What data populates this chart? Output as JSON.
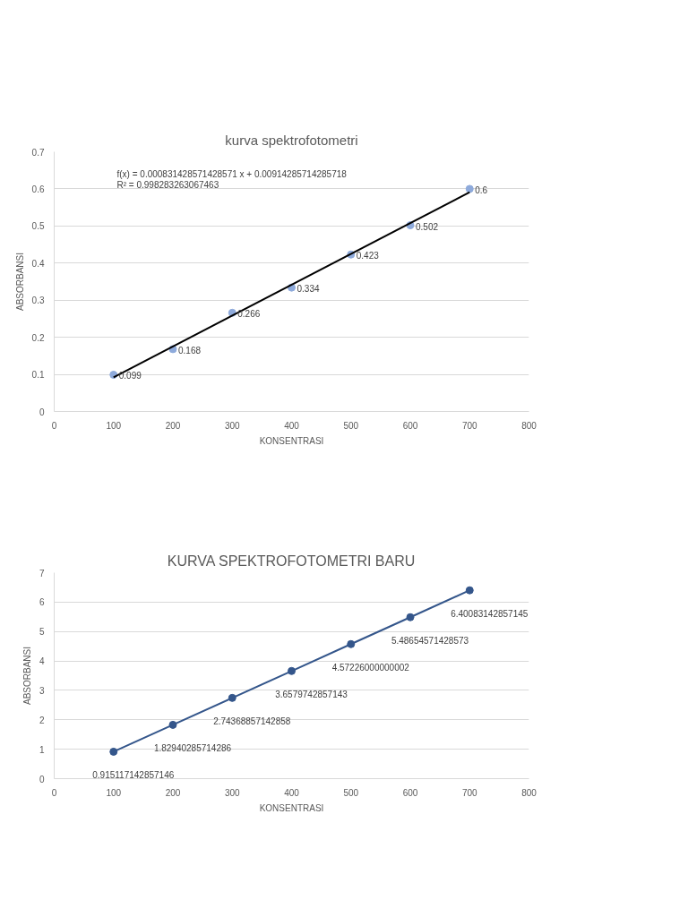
{
  "chart_data": [
    {
      "type": "scatter",
      "title": "kurva spektrofotometri",
      "xlabel": "KONSENTRASI",
      "ylabel": "ABSORBANSI",
      "x": [
        100,
        200,
        300,
        400,
        500,
        600,
        700
      ],
      "series": [
        {
          "color": "#8eaadb",
          "marker": "circle",
          "values": [
            0.099,
            0.168,
            0.266,
            0.334,
            0.423,
            0.502,
            0.6
          ],
          "value_labels": [
            "0.099",
            "0.168",
            "0.266",
            "0.334",
            "0.423",
            "0.502",
            "0.6"
          ]
        },
        {
          "type": "line",
          "color": "#000000",
          "x": [
            100,
            700
          ],
          "values": [
            0.092,
            0.591
          ]
        }
      ],
      "annotations": [
        "f(x) = 0.000831428571428571 x + 0.00914285714285718",
        "R² = 0.998283263067463"
      ],
      "xlim": [
        0,
        800
      ],
      "xticks": [
        0,
        100,
        200,
        300,
        400,
        500,
        600,
        700,
        800
      ],
      "ylim": [
        0,
        0.7
      ],
      "yticks": [
        0,
        0.1,
        0.2,
        0.3,
        0.4,
        0.5,
        0.6,
        0.7
      ],
      "grid": "y"
    },
    {
      "type": "line",
      "title": "KURVA SPEKTROFOTOMETRI BARU",
      "xlabel": "KONSENTRASI",
      "ylabel": "ABSORBANSI",
      "x": [
        100,
        200,
        300,
        400,
        500,
        600,
        700
      ],
      "series": [
        {
          "color": "#34568b",
          "marker": "circle",
          "values": [
            0.915117142857146,
            1.82940285714286,
            2.74368857142858,
            3.6579742857143,
            4.57226000000002,
            5.48654571428573,
            6.40083142857145
          ],
          "value_labels": [
            "0.915117142857146",
            "1.82940285714286",
            "2.74368857142858",
            "3.6579742857143",
            "4.57226000000002",
            "5.48654571428573",
            "6.40083142857145"
          ]
        }
      ],
      "xlim": [
        0,
        800
      ],
      "xticks": [
        0,
        100,
        200,
        300,
        400,
        500,
        600,
        700,
        800
      ],
      "ylim": [
        0,
        7
      ],
      "yticks": [
        0,
        1,
        2,
        3,
        4,
        5,
        6,
        7
      ],
      "grid": "y"
    }
  ]
}
